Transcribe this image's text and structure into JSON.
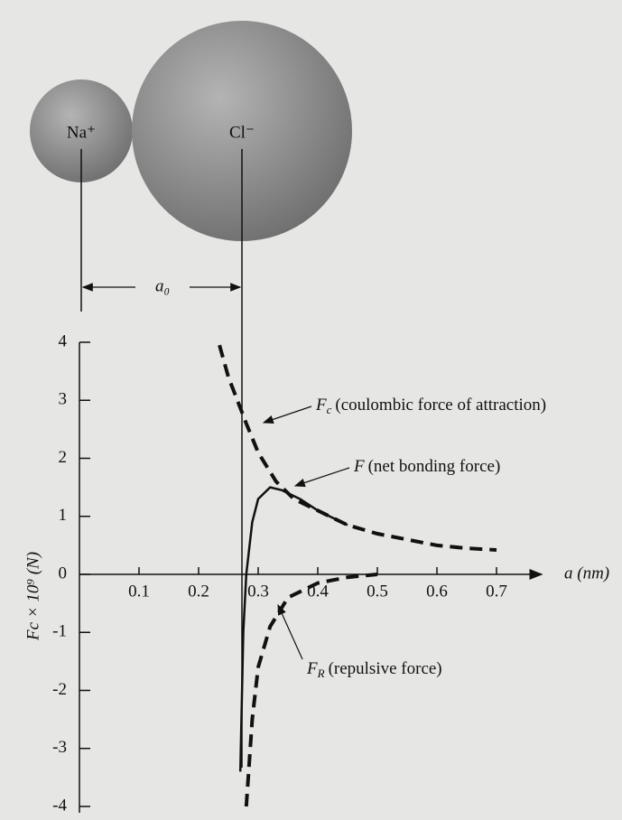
{
  "chart_data": {
    "type": "line",
    "y_label": "Fc × 10⁹ (N)",
    "x_label": "a (nm)",
    "ion_labels": [
      "Na⁺",
      "Cl⁻"
    ],
    "spacing_label": "a₀",
    "xlim": [
      0,
      0.78
    ],
    "xticks": [
      0.1,
      0.2,
      0.3,
      0.4,
      0.5,
      0.6,
      0.7
    ],
    "ylim": [
      -4,
      4
    ],
    "yticks": [
      -4,
      -3,
      -2,
      -1,
      0,
      1,
      2,
      3,
      4
    ],
    "series": [
      {
        "symbol": "F",
        "sub": "c",
        "name": "(coulombic force of attraction)",
        "color": "#111111",
        "dash": true,
        "x": [
          0.235,
          0.25,
          0.28,
          0.3,
          0.33,
          0.36,
          0.4,
          0.45,
          0.5,
          0.55,
          0.6,
          0.65,
          0.7
        ],
        "values": [
          3.95,
          3.4,
          2.6,
          2.1,
          1.6,
          1.3,
          1.1,
          0.85,
          0.7,
          0.6,
          0.5,
          0.45,
          0.42
        ]
      },
      {
        "symbol": "F",
        "name": "(net bonding force)",
        "color": "#111111",
        "dash": false,
        "x": [
          0.27,
          0.275,
          0.28,
          0.29,
          0.3,
          0.32,
          0.34,
          0.37,
          0.4,
          0.45
        ],
        "values": [
          -3.4,
          -1,
          0,
          0.9,
          1.3,
          1.5,
          1.45,
          1.3,
          1.1,
          0.85
        ]
      },
      {
        "symbol": "F",
        "sub": "R",
        "name": "(repulsive force)",
        "color": "#111111",
        "dash": true,
        "x": [
          0.28,
          0.29,
          0.3,
          0.32,
          0.35,
          0.4,
          0.45,
          0.5
        ],
        "values": [
          -4,
          -2.5,
          -1.6,
          -0.9,
          -0.4,
          -0.15,
          -0.05,
          0
        ]
      }
    ]
  }
}
